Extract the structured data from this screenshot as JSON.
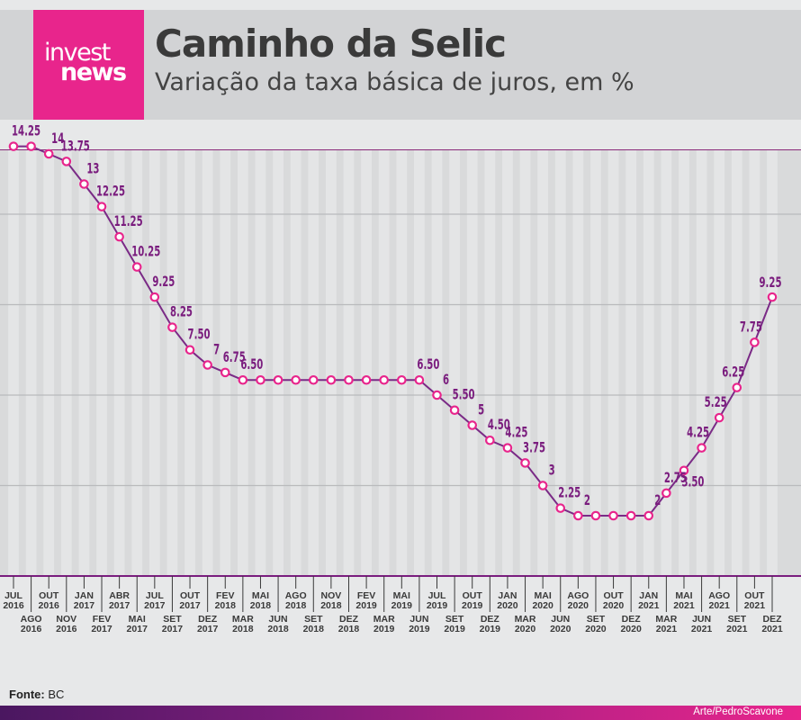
{
  "header": {
    "logo_line1": "invest",
    "logo_line2": "news",
    "title": "Caminho da Selic",
    "subtitle": "Variação da taxa básica de juros, em %"
  },
  "footer": {
    "source_label": "Fonte:",
    "source_value": "BC",
    "credit": "Arte/PedroScavone"
  },
  "colors": {
    "accent": "#e8258c",
    "line": "#7a2a86",
    "label": "#7a1d7e"
  },
  "chart_data": {
    "type": "line",
    "title": "Caminho da Selic",
    "subtitle": "Variação da taxa básica de juros, em %",
    "grid": true,
    "series": [
      {
        "points": [
          {
            "m": "JUL",
            "y": "2016",
            "v": 14.25,
            "label": "14.25"
          },
          {
            "m": "AGO",
            "y": "2016",
            "v": 14.25,
            "label": ""
          },
          {
            "m": "OUT",
            "y": "2016",
            "v": 14,
            "label": "14"
          },
          {
            "m": "NOV",
            "y": "2016",
            "v": 13.75,
            "label": "13.75"
          },
          {
            "m": "JAN",
            "y": "2017",
            "v": 13,
            "label": "13"
          },
          {
            "m": "FEV",
            "y": "2017",
            "v": 12.25,
            "label": "12.25"
          },
          {
            "m": "ABR",
            "y": "2017",
            "v": 11.25,
            "label": "11.25"
          },
          {
            "m": "MAI",
            "y": "2017",
            "v": 10.25,
            "label": "10.25"
          },
          {
            "m": "JUL",
            "y": "2017",
            "v": 9.25,
            "label": "9.25"
          },
          {
            "m": "SET",
            "y": "2017",
            "v": 8.25,
            "label": "8.25"
          },
          {
            "m": "OUT",
            "y": "2017",
            "v": 7.5,
            "label": "7.50"
          },
          {
            "m": "DEZ",
            "y": "2017",
            "v": 7,
            "label": "7"
          },
          {
            "m": "FEV",
            "y": "2018",
            "v": 6.75,
            "label": "6.75"
          },
          {
            "m": "MAR",
            "y": "2018",
            "v": 6.5,
            "label": "6.50"
          },
          {
            "m": "MAI",
            "y": "2018",
            "v": 6.5,
            "label": ""
          },
          {
            "m": "JUN",
            "y": "2018",
            "v": 6.5,
            "label": ""
          },
          {
            "m": "AGO",
            "y": "2018",
            "v": 6.5,
            "label": ""
          },
          {
            "m": "SET",
            "y": "2018",
            "v": 6.5,
            "label": ""
          },
          {
            "m": "NOV",
            "y": "2018",
            "v": 6.5,
            "label": ""
          },
          {
            "m": "DEZ",
            "y": "2018",
            "v": 6.5,
            "label": ""
          },
          {
            "m": "FEV",
            "y": "2019",
            "v": 6.5,
            "label": ""
          },
          {
            "m": "MAR",
            "y": "2019",
            "v": 6.5,
            "label": ""
          },
          {
            "m": "MAI",
            "y": "2019",
            "v": 6.5,
            "label": ""
          },
          {
            "m": "JUN",
            "y": "2019",
            "v": 6.5,
            "label": "6.50"
          },
          {
            "m": "JUL",
            "y": "2019",
            "v": 6,
            "label": "6"
          },
          {
            "m": "SET",
            "y": "2019",
            "v": 5.5,
            "label": "5.50"
          },
          {
            "m": "OUT",
            "y": "2019",
            "v": 5,
            "label": "5"
          },
          {
            "m": "DEZ",
            "y": "2019",
            "v": 4.5,
            "label": "4.50"
          },
          {
            "m": "JAN",
            "y": "2020",
            "v": 4.25,
            "label": "4.25"
          },
          {
            "m": "MAR",
            "y": "2020",
            "v": 3.75,
            "label": "3.75"
          },
          {
            "m": "MAI",
            "y": "2020",
            "v": 3,
            "label": "3"
          },
          {
            "m": "JUN",
            "y": "2020",
            "v": 2.25,
            "label": "2.25"
          },
          {
            "m": "AGO",
            "y": "2020",
            "v": 2,
            "label": "2"
          },
          {
            "m": "SET",
            "y": "2020",
            "v": 2,
            "label": ""
          },
          {
            "m": "OUT",
            "y": "2020",
            "v": 2,
            "label": ""
          },
          {
            "m": "DEZ",
            "y": "2020",
            "v": 2,
            "label": ""
          },
          {
            "m": "JAN",
            "y": "2021",
            "v": 2,
            "label": "2"
          },
          {
            "m": "MAR",
            "y": "2021",
            "v": 2.75,
            "label": "2.75"
          },
          {
            "m": "MAI",
            "y": "2021",
            "v": 3.5,
            "label": "3.50"
          },
          {
            "m": "JUN",
            "y": "2021",
            "v": 4.25,
            "label": "4.25"
          },
          {
            "m": "AGO",
            "y": "2021",
            "v": 5.25,
            "label": "5.25"
          },
          {
            "m": "SET",
            "y": "2021",
            "v": 6.25,
            "label": "6.25"
          },
          {
            "m": "OUT",
            "y": "2021",
            "v": 7.75,
            "label": "7.75"
          },
          {
            "m": "DEZ",
            "y": "2021",
            "v": 9.25,
            "label": "9.25"
          }
        ]
      }
    ]
  }
}
